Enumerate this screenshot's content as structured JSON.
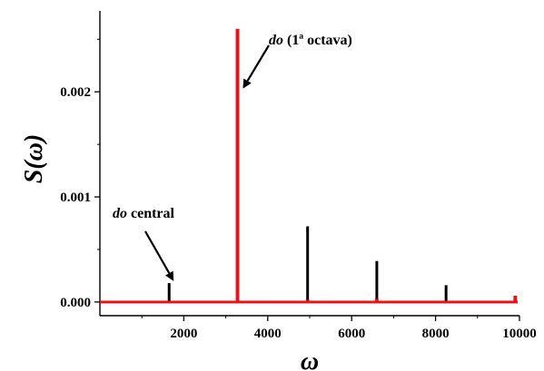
{
  "chart_data": {
    "type": "line",
    "title": "",
    "xlabel": "ω",
    "ylabel": "S(ω)",
    "xlim": [
      0,
      10000
    ],
    "ylim": [
      -0.00013,
      0.00277
    ],
    "x_ticks": [
      {
        "value": 2000,
        "label": "2000"
      },
      {
        "value": 4000,
        "label": "4000"
      },
      {
        "value": 6000,
        "label": "6000"
      },
      {
        "value": 8000,
        "label": "8000"
      },
      {
        "value": 10000,
        "label": "10000"
      }
    ],
    "y_ticks": [
      {
        "value": 0.0,
        "label": "0.000"
      },
      {
        "value": 0.001,
        "label": "0.001"
      },
      {
        "value": 0.002,
        "label": "0.002"
      }
    ],
    "grid": false,
    "legend": "none",
    "series": [
      {
        "color": "#000000",
        "peaks": [
          {
            "x": 1650,
            "y": 0.00018
          },
          {
            "x": 3300,
            "y": 0.0
          },
          {
            "x": 4950,
            "y": 0.00072
          },
          {
            "x": 6600,
            "y": 0.00039
          },
          {
            "x": 8250,
            "y": 0.00016
          },
          {
            "x": 9900,
            "y": 3e-05
          }
        ]
      },
      {
        "color": "#e8141b",
        "baseline": 0.0,
        "peaks": [
          {
            "x": 3280,
            "y": 0.0026
          },
          {
            "x": 4950,
            "y": 2e-05
          },
          {
            "x": 6600,
            "y": 3e-05
          },
          {
            "x": 9900,
            "y": 6e-05
          }
        ]
      }
    ],
    "annotations": [
      {
        "italic": "do",
        "text": " central",
        "target_x": 1650,
        "target_y": 0.00018
      },
      {
        "italic": "do",
        "text": " (1ª octava)",
        "target_x": 3300,
        "target_y": 0.00208
      }
    ]
  }
}
